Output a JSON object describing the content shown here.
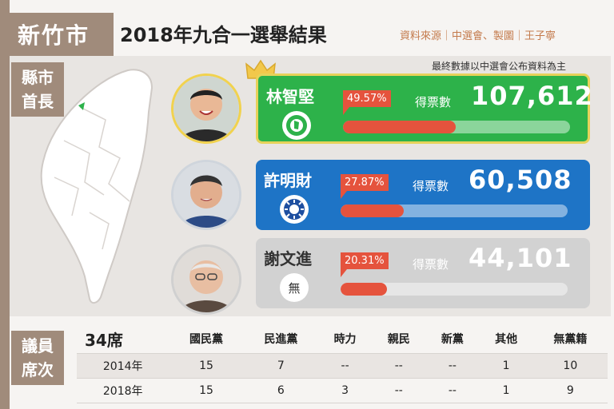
{
  "header": {
    "city": "新竹市",
    "title": "2018年九合一選舉結果",
    "source": "資料來源｜中選會、製圖｜王子寧"
  },
  "mayor_section": {
    "label_line1": "縣市",
    "label_line2": "首長",
    "note": "最終數據以中選會公布資料為主",
    "votes_label": "得票數",
    "candidates": [
      {
        "name": "林智堅",
        "percent": "49.57%",
        "percent_value": 49.57,
        "votes": "107,612",
        "party_icon": "dpp-flag-icon",
        "winner": true,
        "card_color": "#2db24a"
      },
      {
        "name": "許明財",
        "percent": "27.87%",
        "percent_value": 27.87,
        "votes": "60,508",
        "party_icon": "kmt-sun-icon",
        "winner": false,
        "card_color": "#1e74c6"
      },
      {
        "name": "謝文進",
        "percent": "20.31%",
        "percent_value": 20.31,
        "votes": "44,101",
        "party_icon": "independent-icon",
        "party_text": "無",
        "winner": false,
        "card_color": "#d2d2d2"
      }
    ]
  },
  "council_section": {
    "label_line1": "議員",
    "label_line2": "席次",
    "total_seats": "34席",
    "columns": [
      "國民黨",
      "民進黨",
      "時力",
      "親民",
      "新黨",
      "其他",
      "無黨籍"
    ],
    "rows": [
      {
        "year": "2014年",
        "values": [
          "15",
          "7",
          "--",
          "--",
          "--",
          "1",
          "10"
        ]
      },
      {
        "year": "2018年",
        "values": [
          "15",
          "6",
          "3",
          "--",
          "--",
          "1",
          "9"
        ]
      }
    ]
  },
  "colors": {
    "accent": "#a08b7b",
    "bar": "#e5533d",
    "dpp": "#2db24a",
    "kmt": "#1e74c6",
    "independent": "#d2d2d2"
  }
}
